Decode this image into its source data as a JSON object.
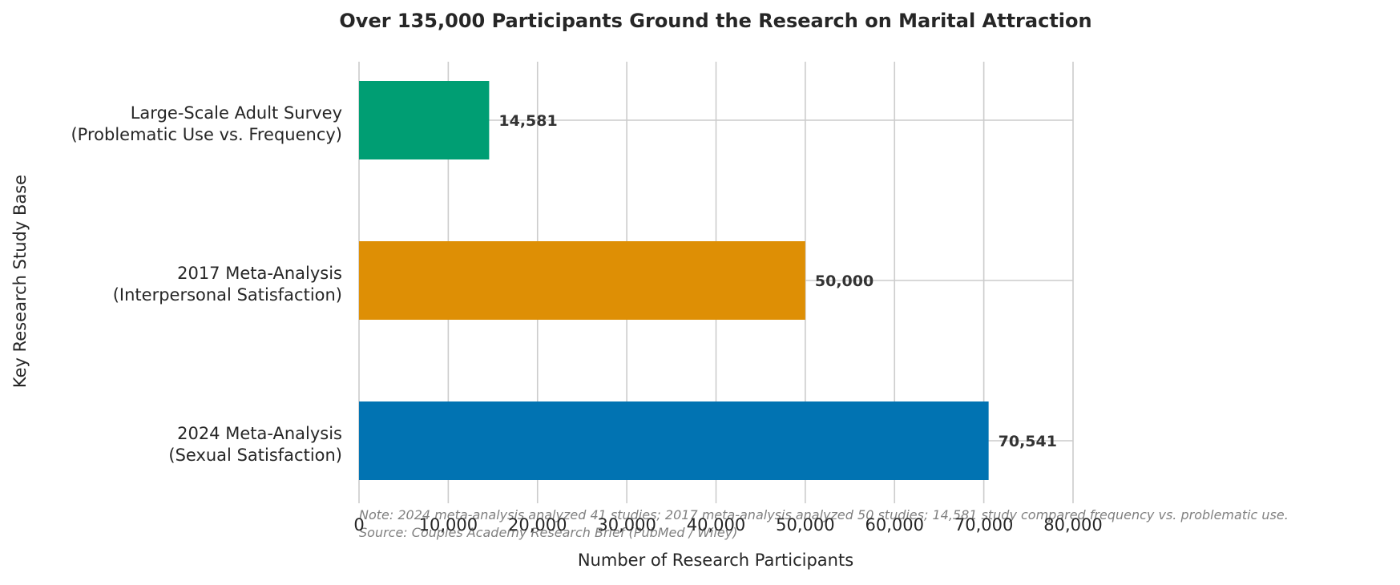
{
  "chart_data": {
    "type": "bar",
    "orientation": "horizontal",
    "title": "Over 135,000 Participants Ground the Research on Marital Attraction",
    "xlabel": "Number of Research Participants",
    "ylabel": "Key Research Study Base",
    "xlim": [
      0,
      80000
    ],
    "xticks": [
      0,
      10000,
      20000,
      30000,
      40000,
      50000,
      60000,
      70000,
      80000
    ],
    "xtick_labels": [
      "0",
      "10,000",
      "20,000",
      "30,000",
      "40,000",
      "50,000",
      "60,000",
      "70,000",
      "80,000"
    ],
    "grid": true,
    "categories": [
      {
        "line1": "Large-Scale Adult Survey",
        "line2": "(Problematic Use vs. Frequency)",
        "value": 14581,
        "value_label": "14,581",
        "color": "#009E73"
      },
      {
        "line1": "2017 Meta-Analysis",
        "line2": "(Interpersonal Satisfaction)",
        "value": 50000,
        "value_label": "50,000",
        "color": "#DE8F05"
      },
      {
        "line1": "2024 Meta-Analysis",
        "line2": "(Sexual Satisfaction)",
        "value": 70541,
        "value_label": "70,541",
        "color": "#0173B2"
      }
    ],
    "note_line1": "Note: 2024 meta-analysis analyzed 41 studies; 2017 meta-analysis analyzed 50 studies; 14,581 study compared frequency vs. problematic use.",
    "note_line2": "Source: Couples Academy Research Brief (PubMed / Wiley)"
  }
}
